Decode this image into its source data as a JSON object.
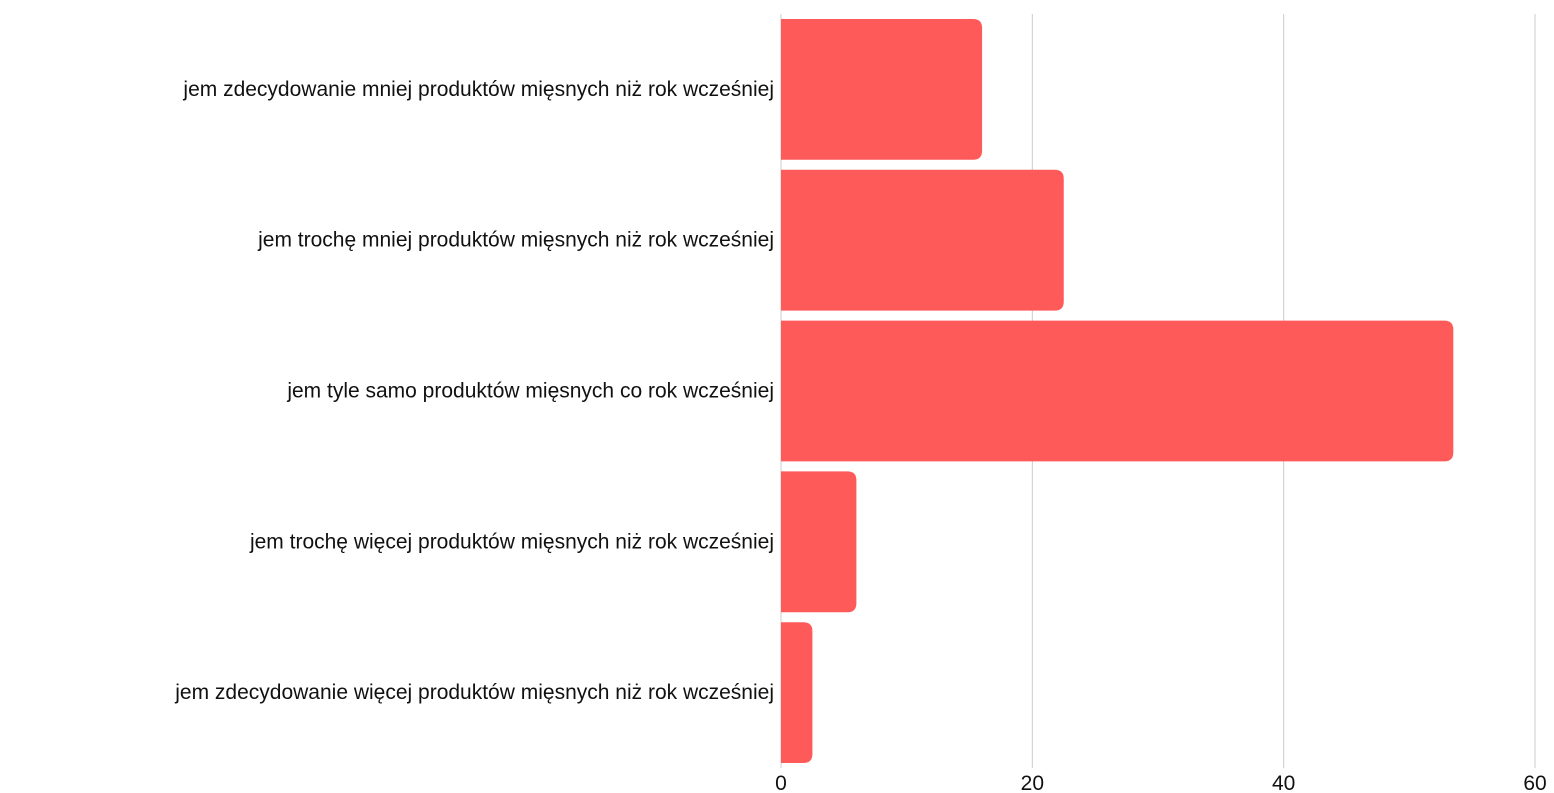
{
  "chart_data": {
    "type": "bar",
    "orientation": "horizontal",
    "title": "",
    "xlabel": "",
    "ylabel": "",
    "categories": [
      "jem zdecydowanie mniej produktów mięsnych niż rok wcześniej",
      "jem trochę mniej produktów mięsnych niż rok wcześniej",
      "jem tyle samo produktów mięsnych co rok wcześniej",
      "jem trochę więcej produktów mięsnych niż rok wcześniej",
      "jem zdecydowanie więcej produktów mięsnych niż rok wcześniej"
    ],
    "values": [
      16,
      22.5,
      53.5,
      6,
      2.5
    ],
    "xlim": [
      0,
      60
    ],
    "ticks": [
      "0",
      "20",
      "40",
      "60"
    ],
    "tick_values": [
      0,
      20,
      40,
      60
    ],
    "grid": "vertical",
    "legend": "none",
    "bar_color": "#ff5a5a",
    "grid_color": "#cccccc"
  }
}
